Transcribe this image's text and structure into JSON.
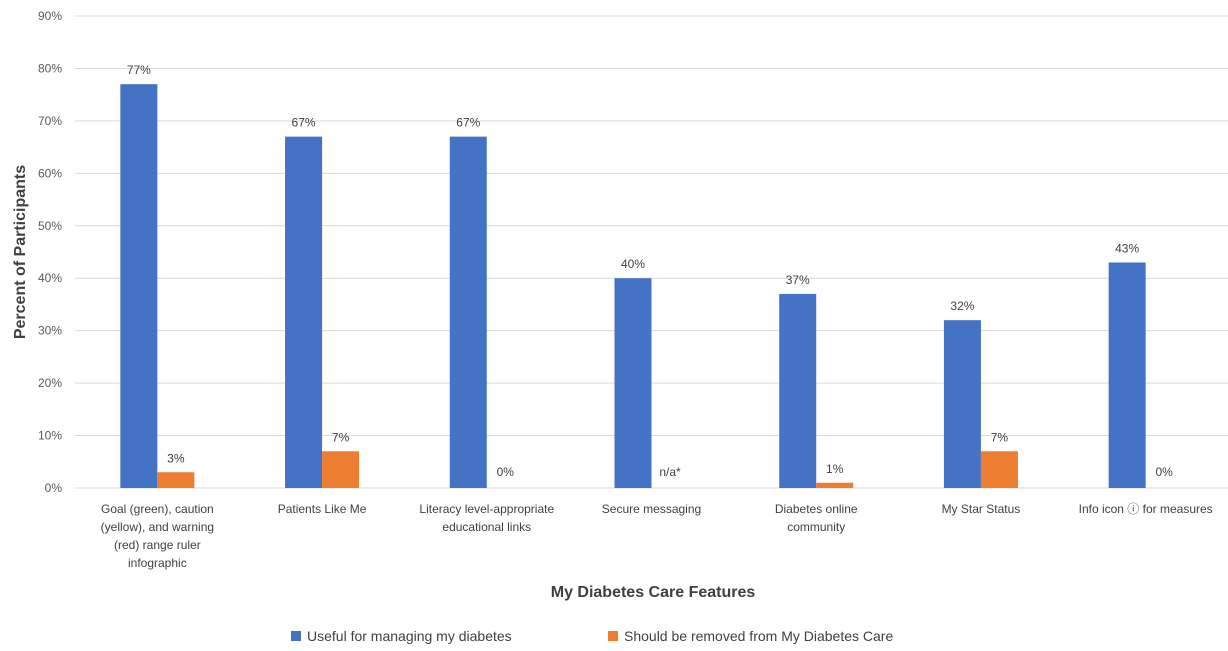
{
  "chart_data": {
    "type": "bar",
    "xlabel": "My Diabetes Care Features",
    "ylabel": "Percent of Participants",
    "ylim": [
      0,
      90
    ],
    "ytick_step": 10,
    "ytick_suffix": "%",
    "grid": true,
    "legend_position": "bottom",
    "categories": [
      [
        "Goal (green),  caution",
        "(yellow), and  warning",
        "(red) range ruler",
        "infographic"
      ],
      [
        "Patients Like Me"
      ],
      [
        "Literacy level-appropriate",
        "educational links"
      ],
      [
        "Secure messaging"
      ],
      [
        "Diabetes online",
        "community"
      ],
      [
        "My Star Status"
      ],
      [
        "Info icon ⓘ for measures"
      ]
    ],
    "series": [
      {
        "name": "Useful for managing my diabetes",
        "color": "#4472c4",
        "values": [
          77,
          67,
          67,
          40,
          37,
          32,
          43
        ],
        "labels": [
          "77%",
          "67%",
          "67%",
          "40%",
          "37%",
          "32%",
          "43%"
        ]
      },
      {
        "name": "Should be removed from My Diabetes Care",
        "color": "#ed7d31",
        "values": [
          3,
          7,
          0,
          null,
          1,
          7,
          0
        ],
        "labels": [
          "3%",
          "7%",
          "0%",
          "n/a*",
          "1%",
          "7%",
          "0%"
        ]
      }
    ]
  }
}
